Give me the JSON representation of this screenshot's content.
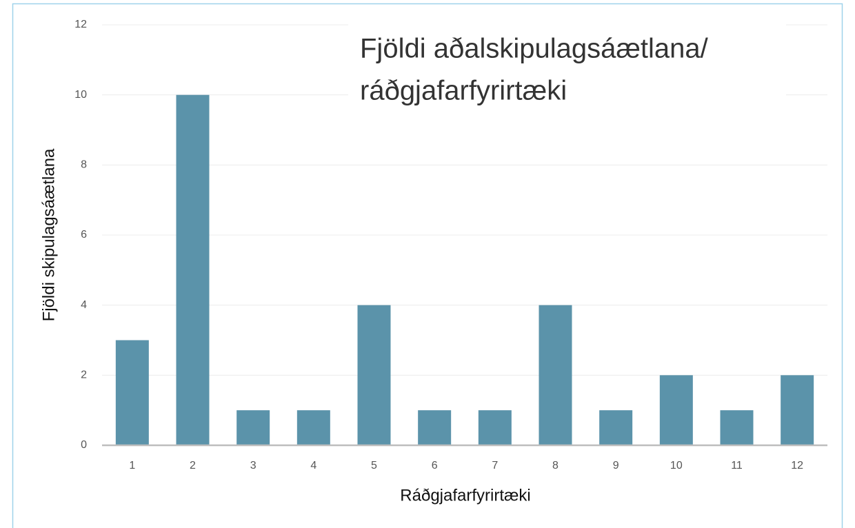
{
  "chart_data": {
    "type": "bar",
    "title": [
      "Fjöldi aðalskipulagsáætlana/",
      "ráðgjafarfyrirtæki"
    ],
    "x_label": "Ráðgjafarfyrirtæki",
    "y_label": "Fjöldi skipulagsáætlana",
    "categories": [
      "1",
      "2",
      "3",
      "4",
      "5",
      "6",
      "7",
      "8",
      "9",
      "10",
      "11",
      "12"
    ],
    "values": [
      3,
      10,
      1,
      1,
      4,
      1,
      1,
      4,
      1,
      2,
      1,
      2
    ],
    "color": "#5b93aa",
    "ylim": [
      0,
      12
    ],
    "yticks": [
      0,
      2,
      4,
      6,
      8,
      10,
      12
    ],
    "grid": true
  }
}
